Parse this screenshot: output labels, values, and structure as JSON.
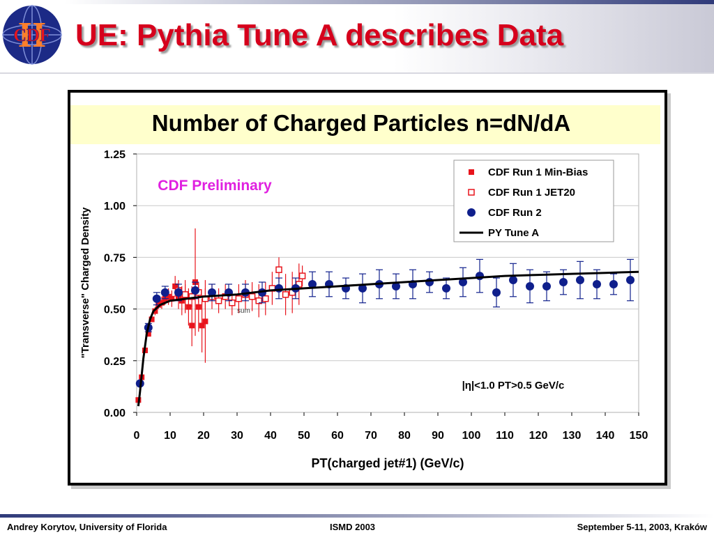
{
  "slide": {
    "title": "UE: Pythia Tune A describes Data",
    "logo_text": "CDF",
    "logo_numeral": "II"
  },
  "footer": {
    "left": "Andrey Korytov, University of Florida",
    "center": "ISMD 2003",
    "right": "September 5-11, 2003, Kraków"
  },
  "colors": {
    "title_red": "#d6001c",
    "minbias_red": "#e8141c",
    "run2_navy": "#0f1f8c",
    "preliminary_magenta": "#e020e0",
    "chart_title_band": "#ffffcc"
  },
  "chart_data": {
    "type": "scatter",
    "title": "Number of Charged Particles n=dN/dA",
    "xlabel": "PT(charged jet#1)  (GeV/c)",
    "ylabel": "\"Transverse\" Charged Density",
    "xlim": [
      0,
      150
    ],
    "ylim": [
      0,
      1.25
    ],
    "x_ticks": [
      0,
      10,
      20,
      30,
      40,
      50,
      60,
      70,
      80,
      90,
      100,
      110,
      120,
      130,
      140,
      150
    ],
    "y_ticks": [
      "0.00",
      "0.25",
      "0.50",
      "0.75",
      "1.00",
      "1.25"
    ],
    "grid": "horizontal",
    "legend_position": "top-right",
    "annotations": {
      "preliminary": "CDF Preliminary",
      "cuts": "|η|<1.0 PT>0.5 GeV/c",
      "small_label": "sum"
    },
    "series": [
      {
        "name": "CDF Run 1 Min-Bias",
        "marker": "filled-square",
        "color": "#e8141c",
        "points": [
          {
            "x": 0.5,
            "y": 0.06,
            "err": 0.0
          },
          {
            "x": 1.5,
            "y": 0.17,
            "err": 0.0
          },
          {
            "x": 2.5,
            "y": 0.3,
            "err": 0.0
          },
          {
            "x": 3.5,
            "y": 0.38,
            "err": 0.0
          },
          {
            "x": 4.5,
            "y": 0.45,
            "err": 0.01
          },
          {
            "x": 5.5,
            "y": 0.49,
            "err": 0.02
          },
          {
            "x": 6.5,
            "y": 0.52,
            "err": 0.02
          },
          {
            "x": 7.5,
            "y": 0.53,
            "err": 0.03
          },
          {
            "x": 8.5,
            "y": 0.55,
            "err": 0.03
          },
          {
            "x": 9.5,
            "y": 0.56,
            "err": 0.04
          },
          {
            "x": 10.5,
            "y": 0.55,
            "err": 0.04
          },
          {
            "x": 11.5,
            "y": 0.61,
            "err": 0.05
          },
          {
            "x": 12.5,
            "y": 0.56,
            "err": 0.06
          },
          {
            "x": 13.5,
            "y": 0.54,
            "err": 0.07
          },
          {
            "x": 14.5,
            "y": 0.56,
            "err": 0.08
          },
          {
            "x": 15.5,
            "y": 0.51,
            "err": 0.09
          },
          {
            "x": 16.5,
            "y": 0.42,
            "err": 0.1
          },
          {
            "x": 17.5,
            "y": 0.63,
            "err": 0.26
          },
          {
            "x": 18.5,
            "y": 0.51,
            "err": 0.12
          },
          {
            "x": 19.5,
            "y": 0.42,
            "err": 0.13
          },
          {
            "x": 20.5,
            "y": 0.44,
            "err": 0.2
          }
        ]
      },
      {
        "name": "CDF Run 1 JET20",
        "marker": "open-square",
        "color": "#e8141c",
        "points": [
          {
            "x": 12.5,
            "y": 0.59,
            "err": 0.05
          },
          {
            "x": 14.5,
            "y": 0.57,
            "err": 0.05
          },
          {
            "x": 16.5,
            "y": 0.56,
            "err": 0.05
          },
          {
            "x": 18.5,
            "y": 0.58,
            "err": 0.05
          },
          {
            "x": 20.5,
            "y": 0.55,
            "err": 0.05
          },
          {
            "x": 22.5,
            "y": 0.56,
            "err": 0.06
          },
          {
            "x": 24.5,
            "y": 0.54,
            "err": 0.06
          },
          {
            "x": 26.5,
            "y": 0.56,
            "err": 0.06
          },
          {
            "x": 28.5,
            "y": 0.53,
            "err": 0.06
          },
          {
            "x": 30.5,
            "y": 0.55,
            "err": 0.07
          },
          {
            "x": 32.5,
            "y": 0.57,
            "err": 0.07
          },
          {
            "x": 34.5,
            "y": 0.56,
            "err": 0.07
          },
          {
            "x": 36.5,
            "y": 0.54,
            "err": 0.08
          },
          {
            "x": 38.5,
            "y": 0.55,
            "err": 0.08
          },
          {
            "x": 40.5,
            "y": 0.6,
            "err": 0.08
          },
          {
            "x": 42.5,
            "y": 0.69,
            "err": 0.06
          },
          {
            "x": 44.5,
            "y": 0.57,
            "err": 0.1
          },
          {
            "x": 46.5,
            "y": 0.58,
            "err": 0.1
          },
          {
            "x": 48.5,
            "y": 0.62,
            "err": 0.1
          },
          {
            "x": 49.5,
            "y": 0.66,
            "err": 0.05
          }
        ]
      },
      {
        "name": "CDF Run 2",
        "marker": "filled-circle",
        "color": "#0f1f8c",
        "points": [
          {
            "x": 1,
            "y": 0.14,
            "err": 0.0
          },
          {
            "x": 3.5,
            "y": 0.41,
            "err": 0.02
          },
          {
            "x": 6,
            "y": 0.55,
            "err": 0.03
          },
          {
            "x": 8.5,
            "y": 0.58,
            "err": 0.03
          },
          {
            "x": 12.5,
            "y": 0.58,
            "err": 0.04
          },
          {
            "x": 17.5,
            "y": 0.59,
            "err": 0.04
          },
          {
            "x": 22.5,
            "y": 0.58,
            "err": 0.04
          },
          {
            "x": 27.5,
            "y": 0.58,
            "err": 0.04
          },
          {
            "x": 32.5,
            "y": 0.58,
            "err": 0.04
          },
          {
            "x": 37.5,
            "y": 0.58,
            "err": 0.05
          },
          {
            "x": 42.5,
            "y": 0.6,
            "err": 0.05
          },
          {
            "x": 47.5,
            "y": 0.6,
            "err": 0.05
          },
          {
            "x": 52.5,
            "y": 0.62,
            "err": 0.06
          },
          {
            "x": 57.5,
            "y": 0.62,
            "err": 0.06
          },
          {
            "x": 62.5,
            "y": 0.6,
            "err": 0.05
          },
          {
            "x": 67.5,
            "y": 0.6,
            "err": 0.07
          },
          {
            "x": 72.5,
            "y": 0.62,
            "err": 0.07
          },
          {
            "x": 77.5,
            "y": 0.61,
            "err": 0.06
          },
          {
            "x": 82.5,
            "y": 0.62,
            "err": 0.07
          },
          {
            "x": 87.5,
            "y": 0.63,
            "err": 0.05
          },
          {
            "x": 92.5,
            "y": 0.6,
            "err": 0.05
          },
          {
            "x": 97.5,
            "y": 0.63,
            "err": 0.07
          },
          {
            "x": 102.5,
            "y": 0.66,
            "err": 0.08
          },
          {
            "x": 107.5,
            "y": 0.58,
            "err": 0.07
          },
          {
            "x": 112.5,
            "y": 0.64,
            "err": 0.08
          },
          {
            "x": 117.5,
            "y": 0.61,
            "err": 0.08
          },
          {
            "x": 122.5,
            "y": 0.61,
            "err": 0.07
          },
          {
            "x": 127.5,
            "y": 0.63,
            "err": 0.06
          },
          {
            "x": 132.5,
            "y": 0.64,
            "err": 0.09
          },
          {
            "x": 137.5,
            "y": 0.62,
            "err": 0.07
          },
          {
            "x": 142.5,
            "y": 0.62,
            "err": 0.05
          },
          {
            "x": 147.5,
            "y": 0.64,
            "err": 0.1
          }
        ]
      },
      {
        "name": "PY Tune A",
        "marker": "line",
        "color": "#000000",
        "points": [
          {
            "x": 0.5,
            "y": 0.03
          },
          {
            "x": 1,
            "y": 0.1
          },
          {
            "x": 2,
            "y": 0.26
          },
          {
            "x": 3,
            "y": 0.38
          },
          {
            "x": 4,
            "y": 0.45
          },
          {
            "x": 5,
            "y": 0.49
          },
          {
            "x": 7,
            "y": 0.52
          },
          {
            "x": 10,
            "y": 0.54
          },
          {
            "x": 15,
            "y": 0.55
          },
          {
            "x": 20,
            "y": 0.56
          },
          {
            "x": 30,
            "y": 0.57
          },
          {
            "x": 40,
            "y": 0.59
          },
          {
            "x": 50,
            "y": 0.6
          },
          {
            "x": 60,
            "y": 0.61
          },
          {
            "x": 70,
            "y": 0.62
          },
          {
            "x": 80,
            "y": 0.63
          },
          {
            "x": 90,
            "y": 0.64
          },
          {
            "x": 100,
            "y": 0.65
          },
          {
            "x": 110,
            "y": 0.66
          },
          {
            "x": 120,
            "y": 0.665
          },
          {
            "x": 130,
            "y": 0.67
          },
          {
            "x": 140,
            "y": 0.675
          },
          {
            "x": 150,
            "y": 0.68
          }
        ]
      }
    ]
  }
}
